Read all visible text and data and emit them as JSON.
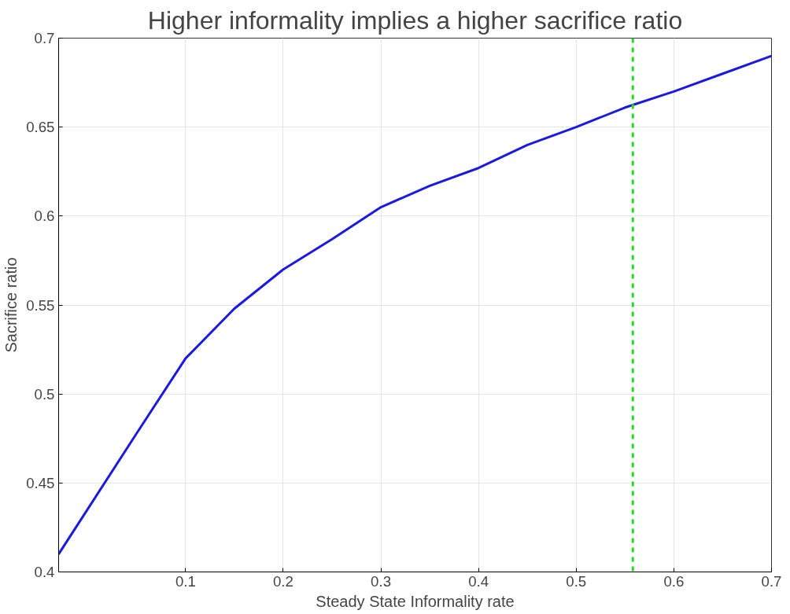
{
  "chart_data": {
    "type": "line",
    "title": "Higher informality implies a higher sacrifice ratio",
    "xlabel": "Steady State Informality rate",
    "ylabel": "Sacrifice ratio",
    "x": [
      -0.03,
      0.05,
      0.1,
      0.15,
      0.2,
      0.25,
      0.3,
      0.35,
      0.4,
      0.45,
      0.5,
      0.55,
      0.6,
      0.65,
      0.7
    ],
    "series": [
      {
        "color": "#1a1ae0",
        "values": [
          0.41,
          0.478,
          0.52,
          0.548,
          0.57,
          0.587,
          0.605,
          0.617,
          0.627,
          0.64,
          0.65,
          0.661,
          0.67,
          0.68,
          0.69
        ]
      }
    ],
    "xlim": [
      -0.03,
      0.7
    ],
    "ylim": [
      0.4,
      0.7
    ],
    "xticks": [
      0.1,
      0.2,
      0.3,
      0.4,
      0.5,
      0.6,
      0.7
    ],
    "yticks": [
      0.4,
      0.45,
      0.5,
      0.55,
      0.6,
      0.65,
      0.7
    ],
    "ref_lines": [
      {
        "axis": "x",
        "value": 0.558,
        "color": "#22dd22",
        "line_style": "dashed"
      }
    ],
    "grid": true,
    "line_style": "solid",
    "marker": "none"
  }
}
